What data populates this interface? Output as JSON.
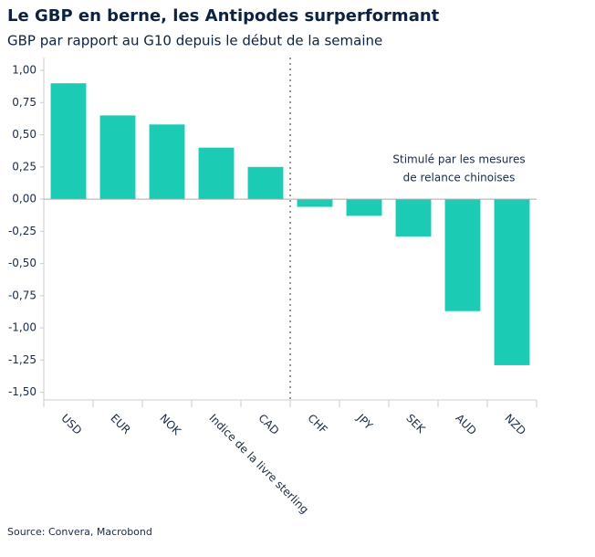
{
  "chart_data": {
    "type": "bar",
    "title": "Le GBP en berne, les Antipodes surperformant",
    "subtitle": "GBP par rapport au G10 depuis le début de la semaine",
    "categories": [
      "USD",
      "EUR",
      "NOK",
      "Indice de la livre sterling",
      "CAD",
      "CHF",
      "JPY",
      "SEK",
      "AUD",
      "NZD"
    ],
    "values": [
      0.9,
      0.65,
      0.58,
      0.4,
      0.25,
      -0.06,
      -0.13,
      -0.29,
      -0.87,
      -1.29
    ],
    "color": "#1ccbb3",
    "ylim": [
      -1.56,
      1.1
    ],
    "yticks": [
      {
        "value": 1,
        "label": "1,00"
      },
      {
        "value": 0.75,
        "label": "0,75"
      },
      {
        "value": 0.5,
        "label": "0,50"
      },
      {
        "value": 0.25,
        "label": "0,25"
      },
      {
        "value": 0,
        "label": "0,00"
      },
      {
        "value": -0.25,
        "label": "-0,25"
      },
      {
        "value": -0.5,
        "label": "-0,50"
      },
      {
        "value": -0.75,
        "label": "-0,75"
      },
      {
        "value": -1,
        "label": "-1,00"
      },
      {
        "value": -1.25,
        "label": "-1,25"
      },
      {
        "value": -1.5,
        "label": "-1,50"
      }
    ],
    "annotation": [
      "Stimulé par les mesures",
      "de relance chinoises"
    ],
    "source": "Source: Convera, Macrobond"
  }
}
